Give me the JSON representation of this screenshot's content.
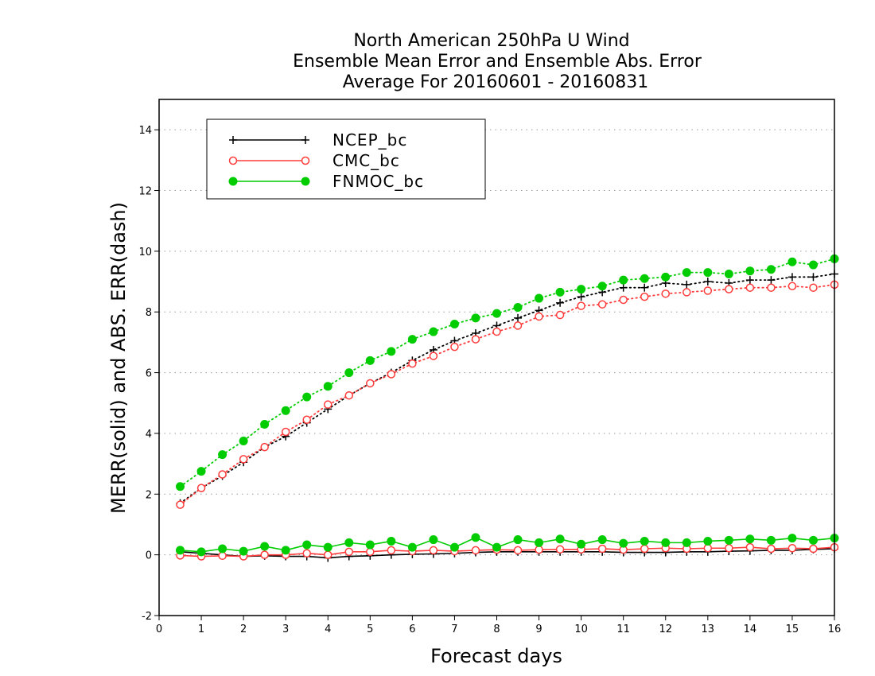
{
  "chart_data": {
    "type": "line",
    "title": [
      "North American 250hPa U Wind",
      "Ensemble Mean Error and Ensemble Abs. Error",
      "Average For 20160601 - 20160831"
    ],
    "xlabel": "Forecast days",
    "ylabel": "MERR(solid) and ABS. ERR(dash)",
    "xlim": [
      0,
      16
    ],
    "ylim": [
      -2,
      15
    ],
    "xticks": [
      0,
      1,
      2,
      3,
      4,
      5,
      6,
      7,
      8,
      9,
      10,
      11,
      12,
      13,
      14,
      15,
      16
    ],
    "yticks": [
      -2,
      0,
      2,
      4,
      6,
      8,
      10,
      12,
      14
    ],
    "grid": true,
    "legend_position": "top-left",
    "x": [
      0.5,
      1,
      1.5,
      2,
      2.5,
      3,
      3.5,
      4,
      4.5,
      5,
      5.5,
      6,
      6.5,
      7,
      7.5,
      8,
      8.5,
      9,
      9.5,
      10,
      10.5,
      11,
      11.5,
      12,
      12.5,
      13,
      13.5,
      14,
      14.5,
      15,
      15.5,
      16
    ],
    "series": [
      {
        "name": "NCEP_bc",
        "color": "#000000",
        "marker": "plus",
        "merr": [
          0.1,
          0.05,
          0.0,
          -0.05,
          -0.03,
          -0.05,
          -0.05,
          -0.1,
          -0.05,
          -0.03,
          0.0,
          0.02,
          0.03,
          0.05,
          0.08,
          0.1,
          0.1,
          0.1,
          0.1,
          0.1,
          0.1,
          0.08,
          0.08,
          0.08,
          0.1,
          0.1,
          0.12,
          0.13,
          0.15,
          0.15,
          0.18,
          0.2
        ],
        "abs_err": [
          1.7,
          2.2,
          2.6,
          3.05,
          3.55,
          3.9,
          4.35,
          4.8,
          5.25,
          5.65,
          6.0,
          6.4,
          6.75,
          7.05,
          7.3,
          7.55,
          7.8,
          8.05,
          8.3,
          8.5,
          8.65,
          8.8,
          8.8,
          8.95,
          8.9,
          9.0,
          8.95,
          9.05,
          9.05,
          9.15,
          9.15,
          9.25
        ]
      },
      {
        "name": "CMC_bc",
        "color": "#ff3b3b",
        "marker": "open-circle",
        "merr": [
          -0.02,
          -0.05,
          -0.03,
          -0.05,
          0.0,
          0.0,
          0.05,
          0.0,
          0.1,
          0.1,
          0.15,
          0.12,
          0.15,
          0.12,
          0.15,
          0.17,
          0.15,
          0.17,
          0.18,
          0.18,
          0.2,
          0.17,
          0.2,
          0.22,
          0.2,
          0.22,
          0.22,
          0.25,
          0.2,
          0.22,
          0.2,
          0.25
        ],
        "abs_err": [
          1.65,
          2.2,
          2.65,
          3.15,
          3.55,
          4.05,
          4.45,
          4.95,
          5.25,
          5.65,
          5.95,
          6.3,
          6.55,
          6.85,
          7.1,
          7.35,
          7.55,
          7.85,
          7.9,
          8.2,
          8.25,
          8.4,
          8.5,
          8.6,
          8.65,
          8.7,
          8.75,
          8.8,
          8.8,
          8.85,
          8.8,
          8.9
        ]
      },
      {
        "name": "FNMOC_bc",
        "color": "#00cc00",
        "marker": "filled-circle",
        "merr": [
          0.15,
          0.1,
          0.2,
          0.12,
          0.28,
          0.15,
          0.33,
          0.25,
          0.4,
          0.33,
          0.45,
          0.25,
          0.5,
          0.25,
          0.57,
          0.25,
          0.5,
          0.4,
          0.52,
          0.35,
          0.5,
          0.38,
          0.45,
          0.4,
          0.4,
          0.45,
          0.48,
          0.52,
          0.48,
          0.55,
          0.48,
          0.55
        ],
        "abs_err": [
          2.25,
          2.75,
          3.3,
          3.75,
          4.3,
          4.75,
          5.2,
          5.55,
          6.0,
          6.4,
          6.7,
          7.1,
          7.35,
          7.6,
          7.8,
          7.95,
          8.15,
          8.45,
          8.65,
          8.75,
          8.85,
          9.05,
          9.1,
          9.15,
          9.3,
          9.3,
          9.25,
          9.35,
          9.4,
          9.65,
          9.55,
          9.75
        ]
      }
    ]
  }
}
